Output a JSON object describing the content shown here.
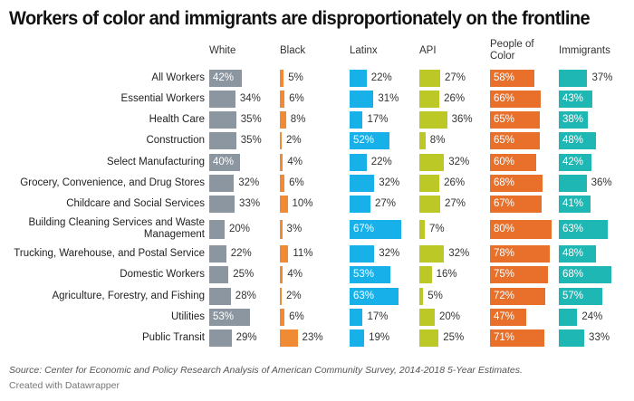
{
  "chart_data": {
    "type": "bar",
    "orientation": "horizontal",
    "layout": "small-multiples",
    "title": "Workers of color and immigrants are disproportionately on the frontline",
    "xlabel": "",
    "ylabel": "",
    "unit": "%",
    "xlim": [
      0,
      100
    ],
    "grid": false,
    "legend": "none",
    "categories": [
      "All Workers",
      "Essential Workers",
      "Health Care",
      "Construction",
      "Select Manufacturing",
      "Grocery, Convenience, and Drug Stores",
      "Childcare and Social Services",
      "Building Cleaning Services and Waste Management",
      "Trucking, Warehouse, and Postal Service",
      "Domestic Workers",
      "Agriculture, Forestry, and Fishing",
      "Utilities",
      "Public Transit"
    ],
    "category_lines": [
      [
        "All Workers"
      ],
      [
        "Essential Workers"
      ],
      [
        "Health Care"
      ],
      [
        "Construction"
      ],
      [
        "Select Manufacturing"
      ],
      [
        "Grocery, Convenience, and Drug Stores"
      ],
      [
        "Childcare and Social Services"
      ],
      [
        "Building Cleaning Services and Waste",
        "Management"
      ],
      [
        "Trucking, Warehouse, and Postal Service"
      ],
      [
        "Domestic Workers"
      ],
      [
        "Agriculture, Forestry, and Fishing"
      ],
      [
        "Utilities"
      ],
      [
        "Public Transit"
      ]
    ],
    "series": [
      {
        "name": "White",
        "header_lines": [
          "White"
        ],
        "color": "#8c96a1",
        "values": [
          42,
          34,
          35,
          35,
          40,
          32,
          33,
          20,
          22,
          25,
          28,
          53,
          29
        ]
      },
      {
        "name": "Black",
        "header_lines": [
          "Black"
        ],
        "color": "#f08a35",
        "values": [
          5,
          6,
          8,
          2,
          4,
          6,
          10,
          3,
          11,
          4,
          2,
          6,
          23
        ]
      },
      {
        "name": "Latinx",
        "header_lines": [
          "Latinx"
        ],
        "color": "#18b0e8",
        "values": [
          22,
          31,
          17,
          52,
          22,
          32,
          27,
          67,
          32,
          53,
          63,
          17,
          19
        ]
      },
      {
        "name": "API",
        "header_lines": [
          "API"
        ],
        "color": "#bcc826",
        "values": [
          27,
          26,
          36,
          8,
          32,
          26,
          27,
          7,
          32,
          16,
          5,
          20,
          25
        ]
      },
      {
        "name": "People of Color",
        "header_lines": [
          "People of",
          "Color"
        ],
        "color": "#e8702a",
        "values": [
          58,
          66,
          65,
          65,
          60,
          68,
          67,
          80,
          78,
          75,
          72,
          47,
          71
        ]
      },
      {
        "name": "Immigrants",
        "header_lines": [
          "Immigrants"
        ],
        "color": "#1fb7b4",
        "values": [
          37,
          43,
          38,
          48,
          42,
          36,
          41,
          63,
          48,
          68,
          57,
          24,
          33
        ]
      }
    ],
    "label_inside": [
      [
        true,
        false,
        false,
        false,
        true,
        false,
        false,
        false,
        false,
        false,
        false,
        true,
        false
      ],
      [
        false,
        false,
        false,
        false,
        false,
        false,
        false,
        false,
        false,
        false,
        false,
        false,
        false
      ],
      [
        false,
        false,
        false,
        true,
        false,
        false,
        false,
        true,
        false,
        true,
        true,
        false,
        false
      ],
      [
        false,
        false,
        false,
        false,
        false,
        false,
        false,
        false,
        false,
        false,
        false,
        false,
        false
      ],
      [
        true,
        true,
        true,
        true,
        true,
        true,
        true,
        true,
        true,
        true,
        true,
        true,
        true
      ],
      [
        false,
        true,
        true,
        true,
        true,
        false,
        true,
        true,
        true,
        true,
        true,
        false,
        false
      ]
    ]
  },
  "footer": {
    "source": "Source: Center for Economic and Policy Research Analysis of American Community Survey, 2014-2018 5-Year Estimates.",
    "credit": "Created with Datawrapper"
  }
}
